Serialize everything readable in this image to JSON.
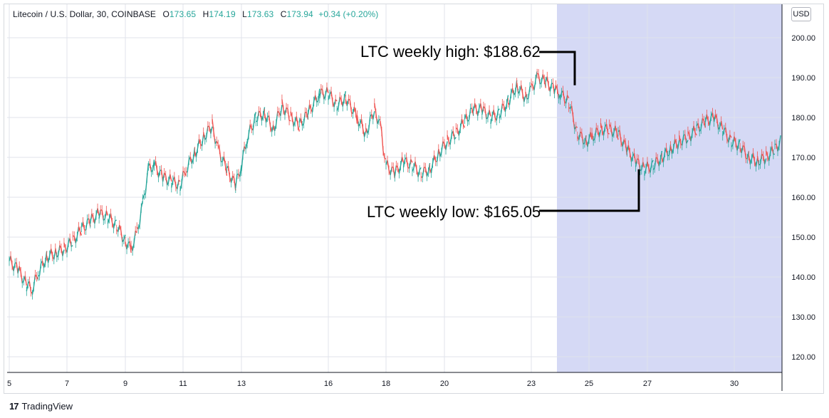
{
  "header": {
    "symbol": "Litecoin / U.S. Dollar, 30, COINBASE",
    "o_label": "O",
    "o_value": "173.65",
    "h_label": "H",
    "h_value": "174.19",
    "l_label": "L",
    "l_value": "173.63",
    "c_label": "C",
    "c_value": "173.94",
    "change": "+0.34 (+0.20%)"
  },
  "currency_button": "USD",
  "brand": {
    "logo": "17",
    "name": "TradingView"
  },
  "colors": {
    "up": "#26a69a",
    "down": "#ef5350",
    "highlight": "#d5d9f5",
    "grid": "#e0e3eb",
    "annotation": "#000000"
  },
  "chart_data": {
    "type": "line",
    "title": "Litecoin / U.S. Dollar, 30, COINBASE",
    "xlabel": "",
    "ylabel": "",
    "ylim": [
      115,
      205
    ],
    "y_ticks": [
      "120.00",
      "130.00",
      "140.00",
      "150.00",
      "160.00",
      "170.00",
      "180.00",
      "190.00",
      "200.00"
    ],
    "x_ticks": [
      "5",
      "7",
      "9",
      "11",
      "13",
      "16",
      "18",
      "20",
      "23",
      "25",
      "27",
      "30"
    ],
    "highlight_range": {
      "from": "23",
      "to": "30+"
    },
    "grid": true,
    "series": [
      {
        "values": [
          [
            5,
            144
          ],
          [
            5.3,
            142
          ],
          [
            5.6,
            138
          ],
          [
            5.8,
            137
          ],
          [
            6,
            141
          ],
          [
            6.3,
            145
          ],
          [
            6.6,
            146
          ],
          [
            6.9,
            147
          ],
          [
            7.2,
            149
          ],
          [
            7.5,
            152
          ],
          [
            7.8,
            154
          ],
          [
            8.1,
            156
          ],
          [
            8.4,
            155
          ],
          [
            8.7,
            153
          ],
          [
            9,
            149
          ],
          [
            9.2,
            147
          ],
          [
            9.4,
            151
          ],
          [
            9.6,
            158
          ],
          [
            9.8,
            167
          ],
          [
            10,
            168
          ],
          [
            10.3,
            165
          ],
          [
            10.6,
            164
          ],
          [
            10.9,
            163
          ],
          [
            11.1,
            167
          ],
          [
            11.4,
            171
          ],
          [
            11.7,
            175
          ],
          [
            12,
            178
          ],
          [
            12.2,
            172
          ],
          [
            12.5,
            167
          ],
          [
            12.8,
            163
          ],
          [
            13,
            168
          ],
          [
            13.2,
            175
          ],
          [
            13.5,
            180
          ],
          [
            13.8,
            181
          ],
          [
            14.1,
            177
          ],
          [
            14.4,
            183
          ],
          [
            14.7,
            180
          ],
          [
            15,
            178
          ],
          [
            15.3,
            181
          ],
          [
            15.7,
            186
          ],
          [
            16,
            186
          ],
          [
            16.3,
            183
          ],
          [
            16.6,
            185
          ],
          [
            17,
            180
          ],
          [
            17.3,
            176
          ],
          [
            17.6,
            182
          ],
          [
            17.8,
            178
          ],
          [
            18,
            168
          ],
          [
            18.3,
            166
          ],
          [
            18.6,
            169
          ],
          [
            18.9,
            168
          ],
          [
            19.2,
            166
          ],
          [
            19.5,
            167
          ],
          [
            19.8,
            171
          ],
          [
            20.1,
            174
          ],
          [
            20.4,
            176
          ],
          [
            20.7,
            179
          ],
          [
            21,
            182
          ],
          [
            21.3,
            182
          ],
          [
            21.6,
            180
          ],
          [
            21.9,
            181
          ],
          [
            22.2,
            184
          ],
          [
            22.5,
            188
          ],
          [
            22.8,
            185
          ],
          [
            23,
            187
          ],
          [
            23.2,
            190
          ],
          [
            23.5,
            189
          ],
          [
            23.8,
            187
          ],
          [
            24,
            186
          ],
          [
            24.3,
            184
          ],
          [
            24.6,
            176
          ],
          [
            24.9,
            174
          ],
          [
            25.1,
            175
          ],
          [
            25.4,
            177
          ],
          [
            25.7,
            177
          ],
          [
            26,
            176
          ],
          [
            26.3,
            172
          ],
          [
            26.6,
            169
          ],
          [
            26.9,
            167
          ],
          [
            27.2,
            168
          ],
          [
            27.5,
            170
          ],
          [
            27.8,
            172
          ],
          [
            28.1,
            174
          ],
          [
            28.4,
            175
          ],
          [
            28.7,
            177
          ],
          [
            29,
            179
          ],
          [
            29.3,
            180
          ],
          [
            29.6,
            177
          ],
          [
            29.9,
            174
          ],
          [
            30.2,
            173
          ],
          [
            30.5,
            170
          ],
          [
            30.8,
            169
          ],
          [
            31.1,
            170
          ],
          [
            31.4,
            172
          ],
          [
            31.6,
            173.94
          ]
        ]
      }
    ],
    "annotations": [
      {
        "text": "LTC weekly high: $188.62",
        "x": 24.5,
        "y": 188.62
      },
      {
        "text": "LTC weekly low: $165.05",
        "x": 26.7,
        "y": 165.05
      }
    ]
  }
}
